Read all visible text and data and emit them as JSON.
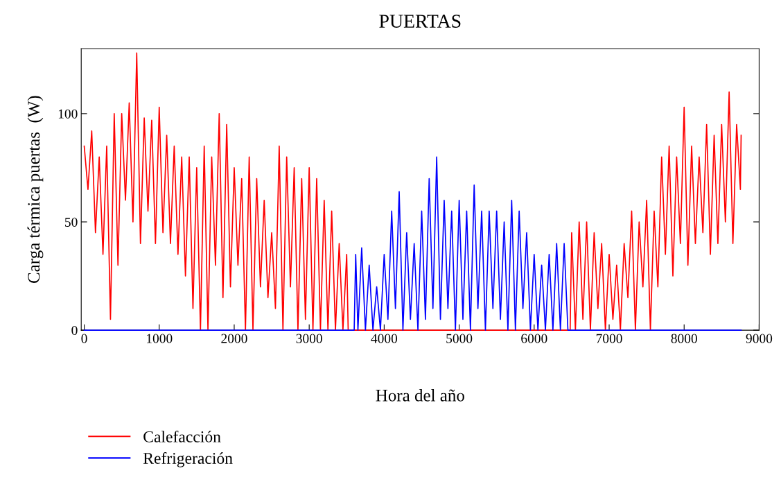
{
  "chart_data": {
    "type": "line",
    "title": "PUERTAS",
    "xlabel": "Hora del año",
    "ylabel": "Carga térmica puertas  (W)",
    "xlim": [
      -40,
      9000
    ],
    "xticks": [
      0,
      1000,
      2000,
      3000,
      4000,
      5000,
      6000,
      7000,
      8000,
      9000
    ],
    "ylim": [
      0,
      130
    ],
    "yticks": [
      0,
      50,
      100
    ],
    "grid": false,
    "legend": "bottom left",
    "series": [
      {
        "name": "Calefacción",
        "color": "#ff0000",
        "x": [
          0,
          50,
          100,
          150,
          200,
          250,
          300,
          350,
          400,
          450,
          500,
          550,
          600,
          650,
          700,
          750,
          800,
          850,
          900,
          950,
          1000,
          1050,
          1100,
          1150,
          1200,
          1250,
          1300,
          1350,
          1400,
          1450,
          1500,
          1550,
          1600,
          1650,
          1700,
          1750,
          1800,
          1850,
          1900,
          1950,
          2000,
          2050,
          2100,
          2150,
          2200,
          2250,
          2300,
          2350,
          2400,
          2450,
          2500,
          2550,
          2600,
          2650,
          2700,
          2750,
          2800,
          2850,
          2900,
          2950,
          3000,
          3050,
          3100,
          3150,
          3200,
          3250,
          3300,
          3350,
          3400,
          3450,
          3500,
          3520,
          6480,
          6500,
          6550,
          6600,
          6650,
          6700,
          6750,
          6800,
          6850,
          6900,
          6950,
          7000,
          7050,
          7100,
          7150,
          7200,
          7250,
          7300,
          7350,
          7400,
          7450,
          7500,
          7550,
          7600,
          7650,
          7700,
          7750,
          7800,
          7850,
          7900,
          7950,
          8000,
          8050,
          8100,
          8150,
          8200,
          8250,
          8300,
          8350,
          8400,
          8450,
          8500,
          8550,
          8600,
          8650,
          8700,
          8750,
          8760
        ],
        "values": [
          85,
          65,
          92,
          45,
          80,
          35,
          85,
          5,
          100,
          30,
          100,
          60,
          105,
          50,
          128,
          40,
          98,
          55,
          97,
          40,
          103,
          45,
          90,
          40,
          85,
          35,
          80,
          25,
          80,
          10,
          75,
          0,
          85,
          0,
          80,
          30,
          100,
          15,
          95,
          20,
          75,
          30,
          70,
          0,
          80,
          0,
          70,
          20,
          60,
          15,
          45,
          10,
          85,
          0,
          80,
          20,
          75,
          0,
          70,
          5,
          75,
          0,
          70,
          0,
          60,
          0,
          55,
          0,
          40,
          0,
          35,
          0,
          0,
          45,
          0,
          50,
          5,
          50,
          0,
          45,
          10,
          40,
          0,
          35,
          5,
          30,
          0,
          40,
          15,
          55,
          0,
          50,
          20,
          60,
          0,
          55,
          20,
          80,
          35,
          85,
          25,
          80,
          40,
          103,
          30,
          85,
          40,
          80,
          45,
          95,
          35,
          90,
          40,
          95,
          50,
          110,
          40,
          95,
          65,
          90
        ]
      },
      {
        "name": "Refrigeración",
        "color": "#0000ff",
        "x": [
          0,
          3550,
          3600,
          3620,
          3650,
          3700,
          3750,
          3800,
          3850,
          3900,
          3950,
          4000,
          4050,
          4100,
          4150,
          4200,
          4250,
          4300,
          4350,
          4400,
          4450,
          4500,
          4550,
          4600,
          4650,
          4700,
          4750,
          4800,
          4850,
          4900,
          4950,
          5000,
          5050,
          5100,
          5150,
          5200,
          5250,
          5300,
          5350,
          5400,
          5450,
          5500,
          5550,
          5600,
          5650,
          5700,
          5750,
          5800,
          5850,
          5900,
          5950,
          6000,
          6050,
          6100,
          6150,
          6200,
          6250,
          6300,
          6350,
          6400,
          6450,
          6500,
          8760
        ],
        "values": [
          0,
          0,
          0,
          35,
          0,
          38,
          0,
          30,
          0,
          20,
          0,
          35,
          5,
          55,
          10,
          64,
          0,
          45,
          5,
          40,
          0,
          55,
          5,
          70,
          10,
          80,
          5,
          60,
          10,
          55,
          0,
          60,
          5,
          55,
          0,
          67,
          10,
          55,
          0,
          55,
          10,
          55,
          5,
          50,
          0,
          60,
          0,
          55,
          10,
          45,
          0,
          35,
          0,
          30,
          0,
          35,
          0,
          40,
          0,
          40,
          0,
          0,
          0
        ]
      }
    ]
  }
}
